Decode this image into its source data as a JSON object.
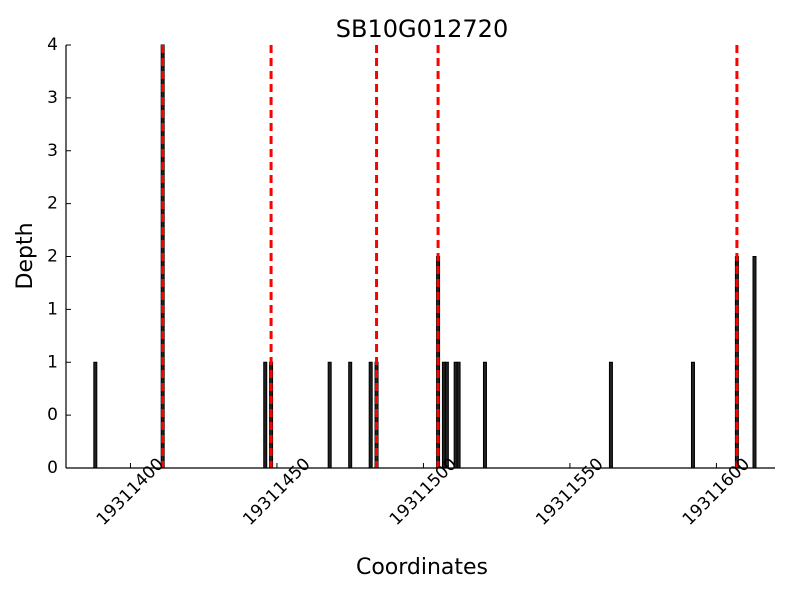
{
  "chart_data": {
    "type": "bar",
    "title": "SB10G012720",
    "xlabel": "Coordinates",
    "ylabel": "Depth",
    "x": [
      19311388,
      19311411,
      19311446,
      19311448,
      19311468,
      19311475,
      19311482,
      19311484,
      19311505,
      19311507,
      19311508,
      19311511,
      19311512,
      19311521,
      19311564,
      19311592,
      19311607,
      19311613
    ],
    "values": [
      1,
      4,
      1,
      1,
      1,
      1,
      1,
      1,
      2,
      1,
      1,
      1,
      1,
      1,
      1,
      1,
      2,
      2
    ],
    "color": "#222222",
    "vlines": [
      19311411,
      19311448,
      19311484,
      19311505,
      19311607
    ],
    "vline_color": "#ff0000",
    "xlim": [
      19311378,
      19311620
    ],
    "xticks": [
      19311400,
      19311450,
      19311500,
      19311550,
      19311600
    ],
    "ylim": [
      0,
      4
    ],
    "yticks": [
      0,
      {
        "value": 0.5,
        "label": "0"
      },
      1,
      {
        "value": 1.5,
        "label": "1"
      },
      2,
      {
        "value": 2.5,
        "label": "2"
      },
      3,
      {
        "value": 3.5,
        "label": "3"
      },
      4
    ]
  }
}
